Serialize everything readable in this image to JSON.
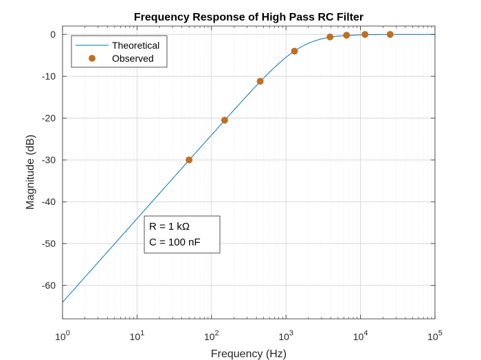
{
  "chart_data": {
    "type": "line",
    "title": "Frequency Response of High Pass RC Filter",
    "xlabel": "Frequency (Hz)",
    "ylabel": "Magnitude (dB)",
    "xscale": "log",
    "xlim": [
      1,
      100000
    ],
    "ylim": [
      -68,
      2
    ],
    "grid": "on (major and minor)",
    "legend_position": "top-left",
    "xticks": [
      {
        "value": 1,
        "base": "10",
        "exp": "0"
      },
      {
        "value": 10,
        "base": "10",
        "exp": "1"
      },
      {
        "value": 100,
        "base": "10",
        "exp": "2"
      },
      {
        "value": 1000,
        "base": "10",
        "exp": "3"
      },
      {
        "value": 10000,
        "base": "10",
        "exp": "4"
      },
      {
        "value": 100000,
        "base": "10",
        "exp": "5"
      }
    ],
    "yticks": [
      0,
      -10,
      -20,
      -30,
      -40,
      -50,
      -60
    ],
    "ytick_labels": [
      "0",
      "-10",
      "-20",
      "-30",
      "-40",
      "-50",
      "-60"
    ],
    "series": [
      {
        "name": "Theoretical",
        "style": "line",
        "color": "#0072BD",
        "R_ohm": 1000,
        "C_farad": 1e-07
      },
      {
        "name": "Observed",
        "style": "marker",
        "color": "#C0701E",
        "x": [
          50,
          150,
          450,
          1300,
          3900,
          6500,
          11500,
          25000
        ],
        "y": [
          -30.0,
          -20.5,
          -11.2,
          -4.0,
          -0.6,
          -0.2,
          0.0,
          0.0
        ]
      }
    ],
    "annotation": [
      "R = 1 kΩ",
      "C = 100 nF"
    ]
  }
}
